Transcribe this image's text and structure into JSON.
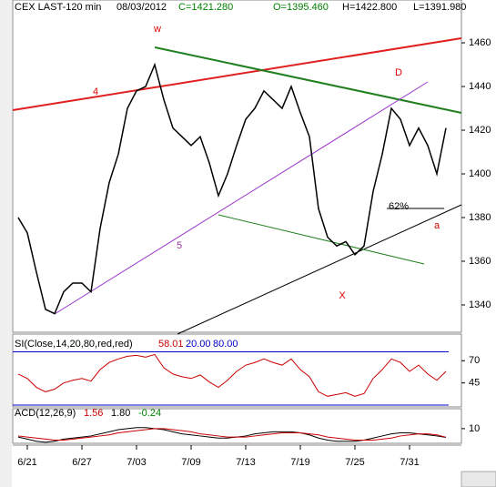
{
  "chart_data": [
    {
      "type": "line",
      "title": "CEX LAST-120 min",
      "header": [
        "08/03/2012",
        "C=1421.280",
        "O=1395.460",
        "H=1422.800",
        "L=1391.980"
      ],
      "categories": [
        null,
        "6/21",
        null,
        null,
        null,
        null,
        null,
        "6/27",
        null,
        null,
        null,
        null,
        null,
        "7/03",
        null,
        null,
        null,
        null,
        null,
        "7/09",
        null,
        null,
        null,
        null,
        null,
        "7/13",
        null,
        null,
        null,
        null,
        null,
        "7/19",
        null,
        null,
        null,
        null,
        null,
        "7/25",
        null,
        null,
        null,
        null,
        null,
        "7/31",
        null,
        null,
        null,
        null
      ],
      "series": [
        {
          "color": "#000000",
          "values": [
            1380,
            1373,
            1355,
            1338,
            1336,
            1346,
            1350,
            1350,
            1346,
            1375,
            1396,
            1409,
            1430,
            1438,
            1440,
            1450,
            1434,
            1421,
            1417,
            1413,
            1417,
            1405,
            1390,
            1400,
            1413,
            1425,
            1430,
            1438,
            1434,
            1430,
            1440,
            1428,
            1417,
            1384,
            1371,
            1367,
            1369,
            1363,
            1367,
            1392,
            1409,
            1430,
            1425,
            1413,
            1421,
            1413,
            1400,
            1421
          ]
        }
      ],
      "ylim": [
        1327.5,
        1479.6
      ],
      "yticks": [
        1340,
        1360,
        1380,
        1400,
        1420,
        1440,
        1460
      ],
      "annotations": [
        "w",
        "4",
        "5",
        "D",
        "X",
        "a",
        "62%"
      ]
    },
    {
      "type": "line",
      "title": "SI(Close,14,20,80,red,red)",
      "last_label": "58.01",
      "levels": [
        {
          "value": 20,
          "label": "20.00"
        },
        {
          "value": 80,
          "label": "80.00"
        }
      ],
      "series": [
        {
          "color": "#cc0000",
          "values": [
            55,
            50,
            40,
            35,
            38,
            45,
            48,
            50,
            47,
            60,
            68,
            72,
            75,
            76,
            74,
            77,
            62,
            55,
            52,
            50,
            54,
            46,
            40,
            48,
            58,
            65,
            68,
            72,
            68,
            65,
            72,
            60,
            52,
            35,
            30,
            32,
            34,
            30,
            33,
            50,
            60,
            72,
            68,
            58,
            65,
            55,
            48,
            58
          ]
        }
      ],
      "ylim": [
        18,
        100
      ],
      "yticks": [
        45,
        70
      ]
    },
    {
      "type": "line",
      "title": "ACD(12,26,9)",
      "readout": [
        "1.56",
        "1.80",
        "-0.24"
      ],
      "series": [
        {
          "color": "#000000",
          "values": [
            2,
            0,
            -2,
            -3,
            -2,
            0,
            1,
            2,
            3,
            5,
            7,
            9,
            10,
            11,
            11,
            10,
            9,
            7,
            5,
            4,
            3,
            2,
            1,
            1,
            2,
            3,
            5,
            6,
            7,
            7,
            7,
            6,
            4,
            1,
            -1,
            -2,
            -2,
            -2,
            -1,
            1,
            3,
            5,
            6,
            6,
            5,
            4,
            3,
            1.6
          ]
        },
        {
          "color": "#cc0000",
          "values": [
            3,
            2,
            1,
            0,
            -1,
            -1,
            0,
            1,
            2,
            3,
            4,
            6,
            7,
            8,
            9,
            10,
            10,
            9,
            8,
            7,
            5,
            4,
            3,
            2,
            2,
            2,
            3,
            4,
            5,
            6,
            6,
            6,
            5,
            4,
            2,
            1,
            0,
            -1,
            -1,
            -1,
            0,
            1,
            3,
            4,
            5,
            5,
            4,
            1.8
          ]
        }
      ],
      "ylim": [
        -4,
        29
      ],
      "yticks": [
        10
      ]
    }
  ]
}
